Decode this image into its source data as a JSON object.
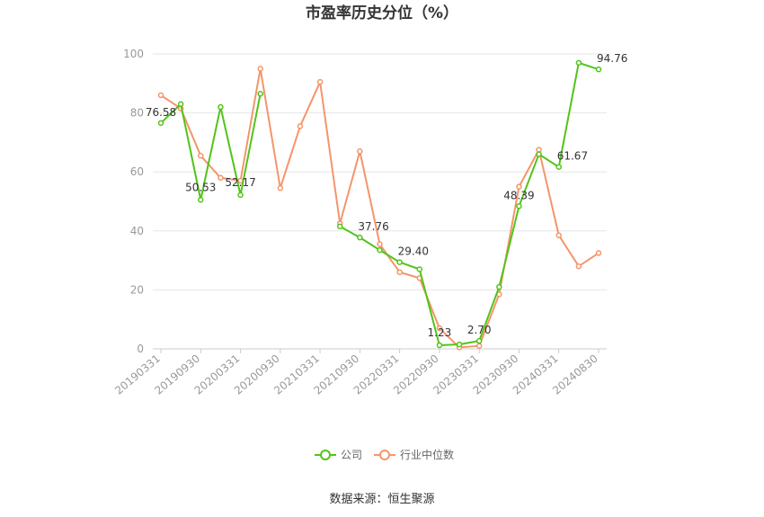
{
  "chart_data": {
    "type": "line",
    "title": "市盈率历史分位（%）",
    "x": [
      "20190331",
      "20190630",
      "20190930",
      "20191231",
      "20200331",
      "20200630",
      "20200930",
      "20201231",
      "20210331",
      "20210630",
      "20210930",
      "20211231",
      "20220331",
      "20220630",
      "20220930",
      "20221231",
      "20230331",
      "20230630",
      "20230930",
      "20231231",
      "20240331",
      "20240630",
      "20240830"
    ],
    "x_tick_labels": [
      "20190331",
      "20190930",
      "20200331",
      "20200930",
      "20210331",
      "20210930",
      "20220331",
      "20220930",
      "20230331",
      "20230930",
      "20240331",
      "20240830"
    ],
    "ylim": [
      0,
      100
    ],
    "y_ticks": [
      0,
      20,
      40,
      60,
      80,
      100
    ],
    "grid": true,
    "legend_position": "bottom",
    "series": [
      {
        "name": "公司",
        "color": "#52c41a",
        "values": [
          76.58,
          83.0,
          50.53,
          82.0,
          52.17,
          86.5,
          null,
          null,
          null,
          41.5,
          37.76,
          33.5,
          29.4,
          27.0,
          1.23,
          1.5,
          2.7,
          21.0,
          48.39,
          66.0,
          61.67,
          97.0,
          94.76
        ]
      },
      {
        "name": "行业中位数",
        "color": "#f4956a",
        "values": [
          86.0,
          81.5,
          65.5,
          58.0,
          57.0,
          95.0,
          54.5,
          75.5,
          90.5,
          42.5,
          67.0,
          35.5,
          26.0,
          24.0,
          7.0,
          0.5,
          1.0,
          18.5,
          55.0,
          67.5,
          38.5,
          28.0,
          32.5
        ]
      }
    ],
    "data_labels": [
      {
        "text": "76.58",
        "index": 0,
        "value": 76.58
      },
      {
        "text": "50.53",
        "index": 2,
        "value": 50.53
      },
      {
        "text": "52.17",
        "index": 4,
        "value": 52.17
      },
      {
        "text": "37.76",
        "index": 10,
        "value": 37.76
      },
      {
        "text": "29.40",
        "index": 12,
        "value": 29.4
      },
      {
        "text": "1.23",
        "index": 14,
        "value": 1.23
      },
      {
        "text": "2.70",
        "index": 16,
        "value": 2.7
      },
      {
        "text": "48.39",
        "index": 18,
        "value": 48.39
      },
      {
        "text": "61.67",
        "index": 20,
        "value": 61.67
      },
      {
        "text": "94.76",
        "index": 22,
        "value": 94.76
      }
    ]
  },
  "source_text": "数据来源：恒生聚源"
}
